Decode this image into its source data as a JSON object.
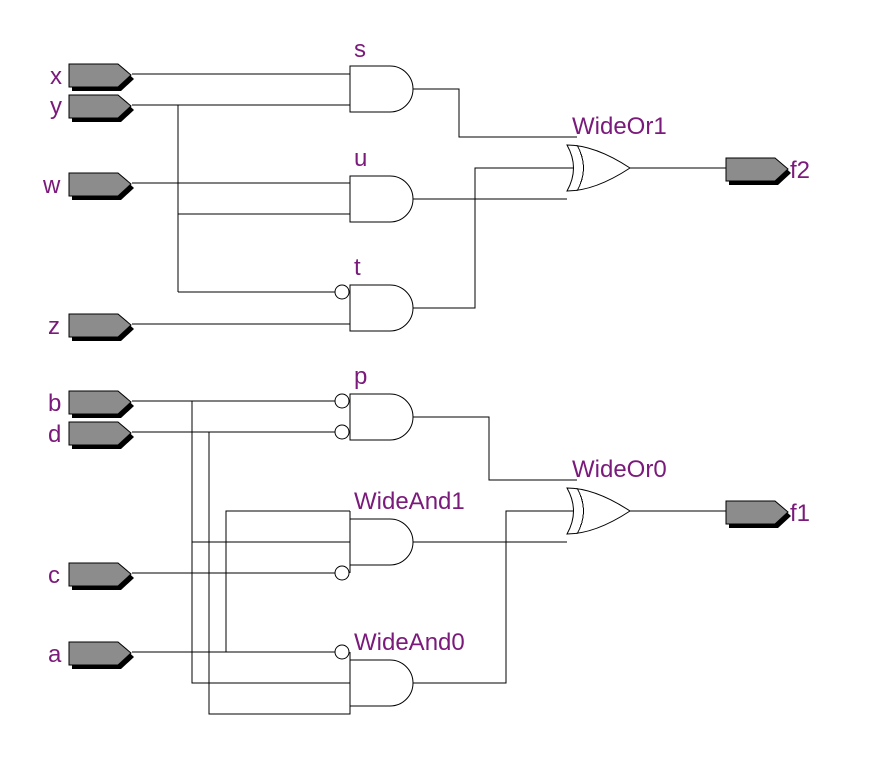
{
  "schematic": {
    "inputs": {
      "x": "x",
      "y": "y",
      "w": "w",
      "z": "z",
      "b": "b",
      "d": "d",
      "c": "c",
      "a": "a"
    },
    "outputs": {
      "f2": "f2",
      "f1": "f1"
    },
    "gates": {
      "s": "s",
      "u": "u",
      "t": "t",
      "wideor1": "WideOr1",
      "p": "p",
      "wideand1": "WideAnd1",
      "wideand0": "WideAnd0",
      "wideor0": "WideOr0"
    },
    "colors": {
      "label": "#7a1a7a",
      "port_fill": "#8c8c8c",
      "wire": "#000000"
    }
  }
}
